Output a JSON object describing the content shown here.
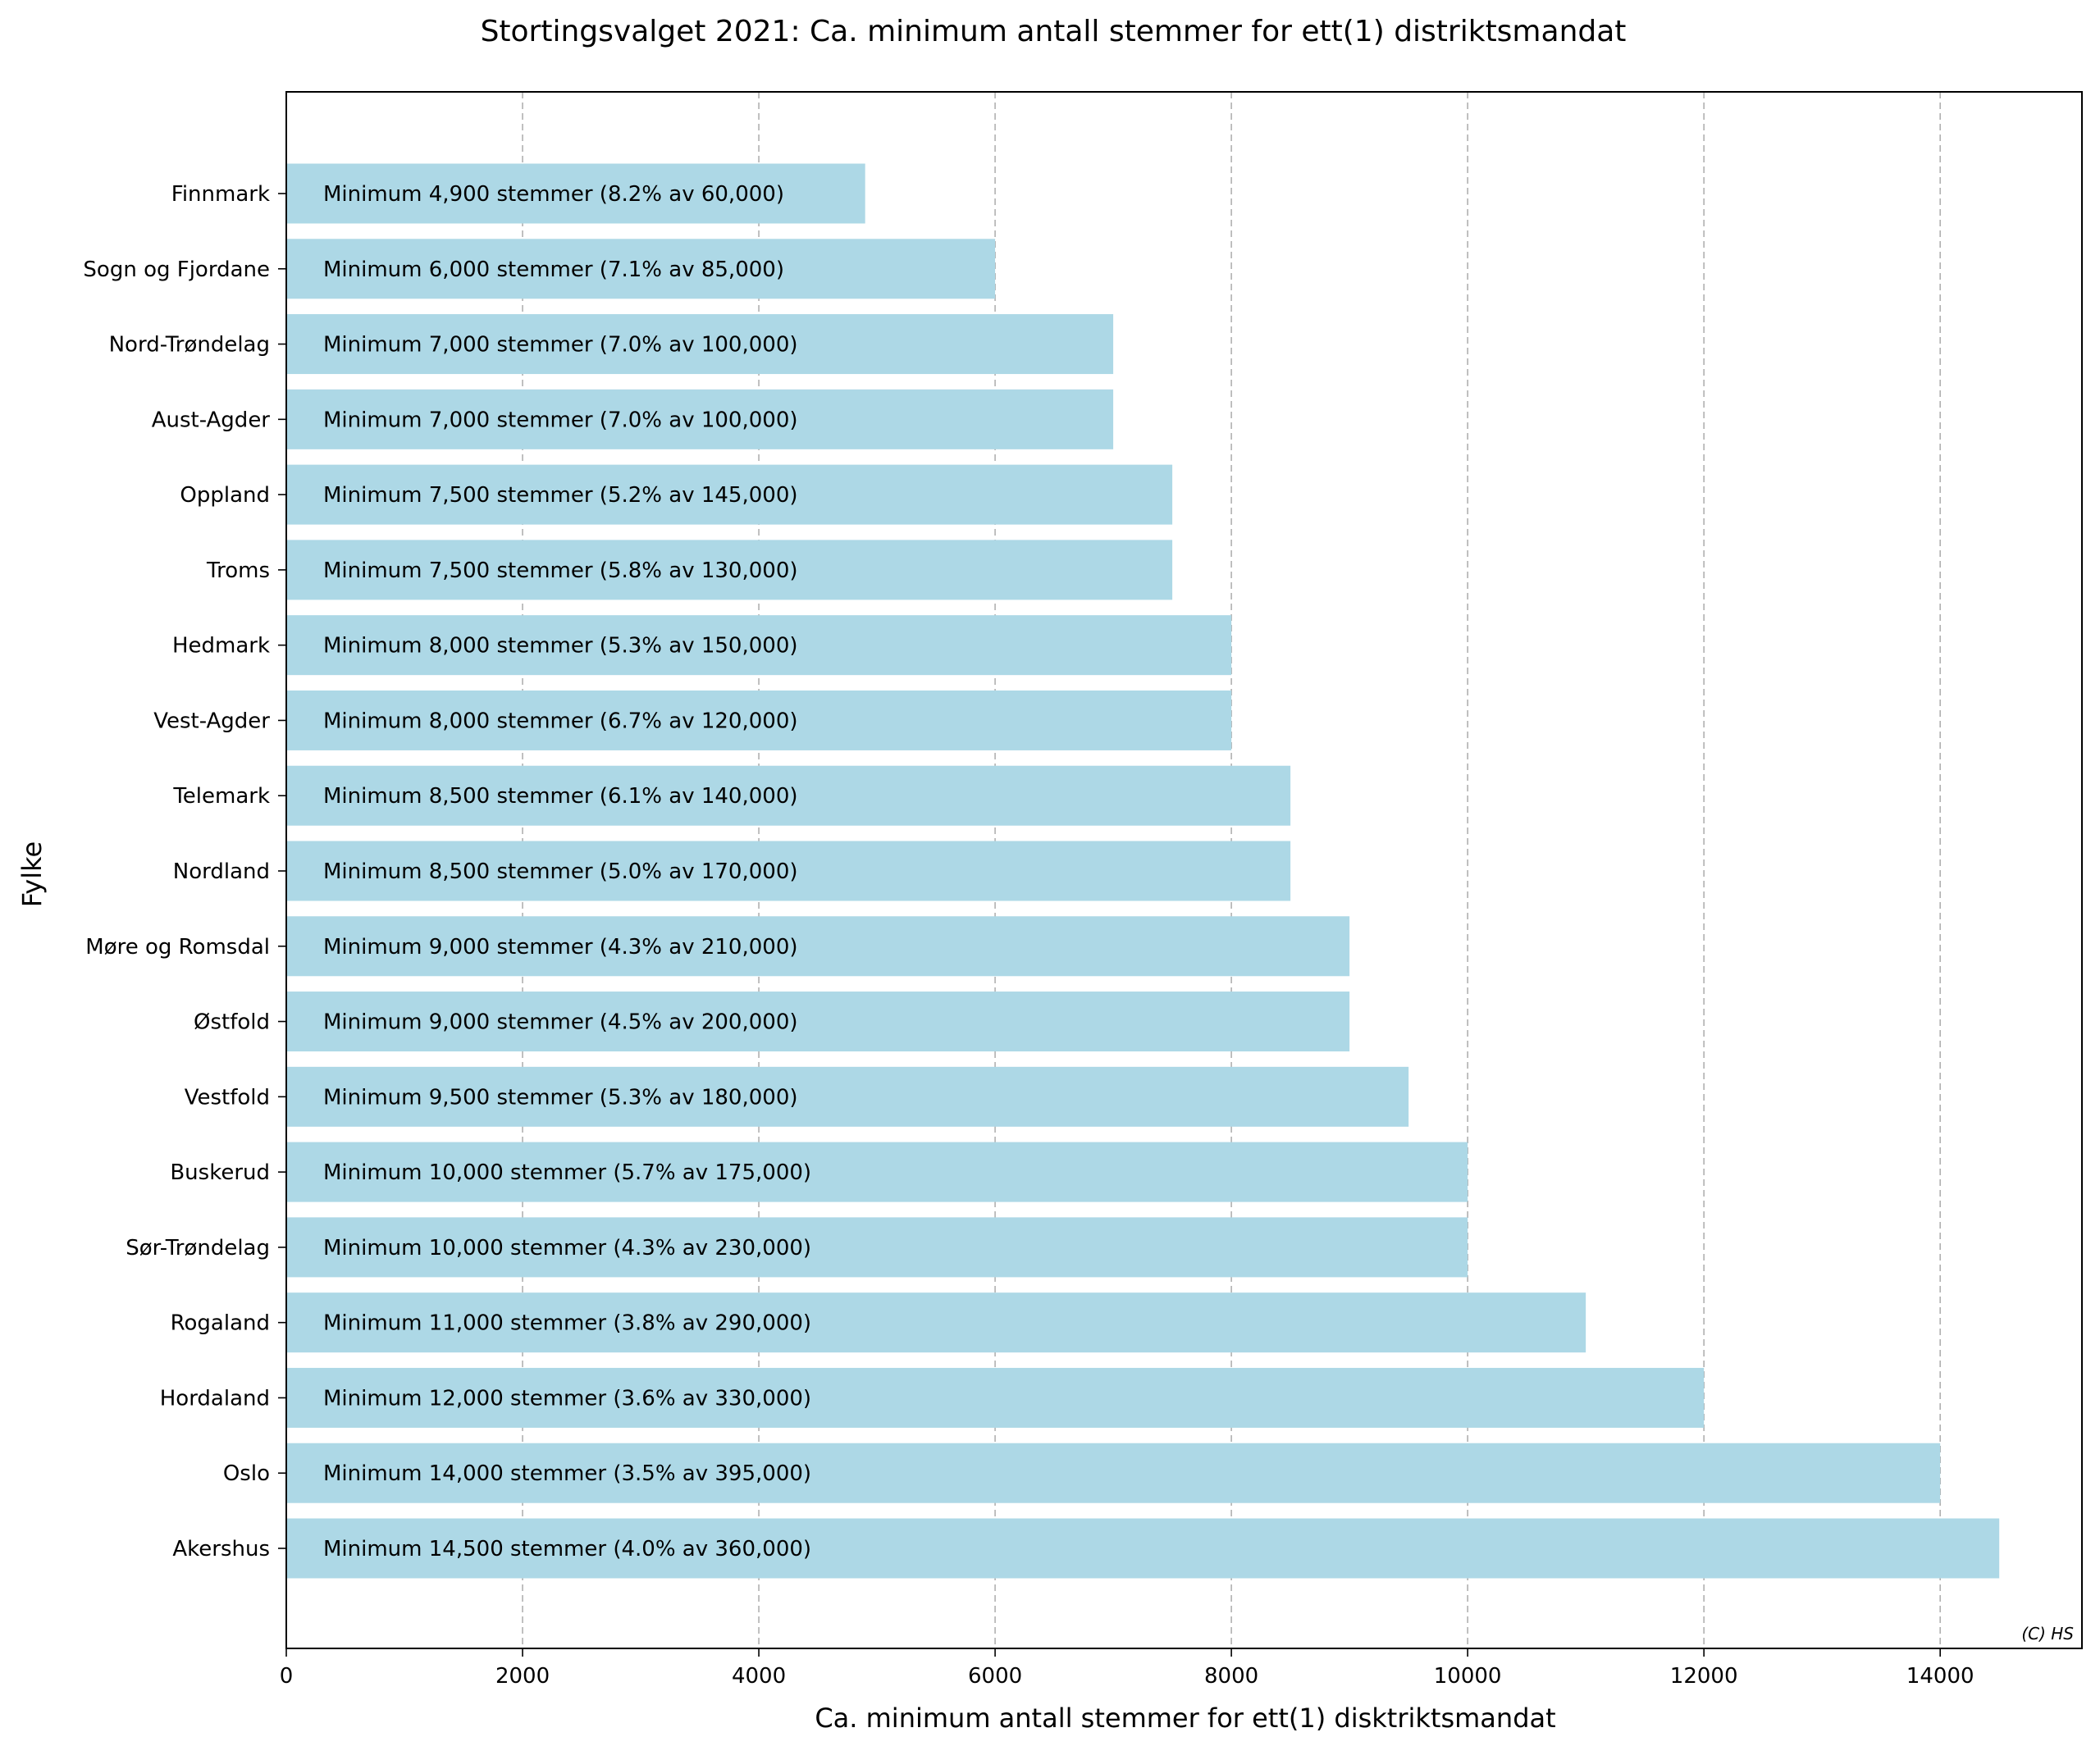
{
  "chart_data": {
    "type": "bar",
    "orientation": "horizontal",
    "title": "Stortingsvalget 2021: Ca. minimum antall stemmer for ett(1) distriktsmandat",
    "xlabel": "Ca. minimum antall stemmer for ett(1) disktriktsmandat",
    "ylabel": "Fylke",
    "xlim": [
      0,
      15200
    ],
    "xticks": [
      0,
      2000,
      4000,
      6000,
      8000,
      10000,
      12000,
      14000
    ],
    "grid": "x-dashed",
    "bar_color": "#add8e6",
    "credit": "(C) HS",
    "categories": [
      "Finnmark",
      "Sogn og Fjordane",
      "Nord-Trøndelag",
      "Aust-Agder",
      "Oppland",
      "Troms",
      "Hedmark",
      "Vest-Agder",
      "Telemark",
      "Nordland",
      "Møre og Romsdal",
      "Østfold",
      "Vestfold",
      "Buskerud",
      "Sør-Trøndelag",
      "Rogaland",
      "Hordaland",
      "Oslo",
      "Akershus"
    ],
    "values": [
      4900,
      6000,
      7000,
      7000,
      7500,
      7500,
      8000,
      8000,
      8500,
      8500,
      9000,
      9000,
      9500,
      10000,
      10000,
      11000,
      12000,
      14000,
      14500
    ],
    "bar_labels": [
      "Minimum 4,900 stemmer (8.2% av 60,000)",
      "Minimum 6,000 stemmer (7.1% av 85,000)",
      "Minimum 7,000 stemmer (7.0% av 100,000)",
      "Minimum 7,000 stemmer (7.0% av 100,000)",
      "Minimum 7,500 stemmer (5.2% av 145,000)",
      "Minimum 7,500 stemmer (5.8% av 130,000)",
      "Minimum 8,000 stemmer (5.3% av 150,000)",
      "Minimum 8,000 stemmer (6.7% av 120,000)",
      "Minimum 8,500 stemmer (6.1% av 140,000)",
      "Minimum 8,500 stemmer (5.0% av 170,000)",
      "Minimum 9,000 stemmer (4.3% av 210,000)",
      "Minimum 9,000 stemmer (4.5% av 200,000)",
      "Minimum 9,500 stemmer (5.3% av 180,000)",
      "Minimum 10,000 stemmer (5.7% av 175,000)",
      "Minimum 10,000 stemmer (4.3% av 230,000)",
      "Minimum 11,000 stemmer (3.8% av 290,000)",
      "Minimum 12,000 stemmer (3.6% av 330,000)",
      "Minimum 14,000 stemmer (3.5% av 395,000)",
      "Minimum 14,500 stemmer (4.0% av 360,000)"
    ]
  }
}
